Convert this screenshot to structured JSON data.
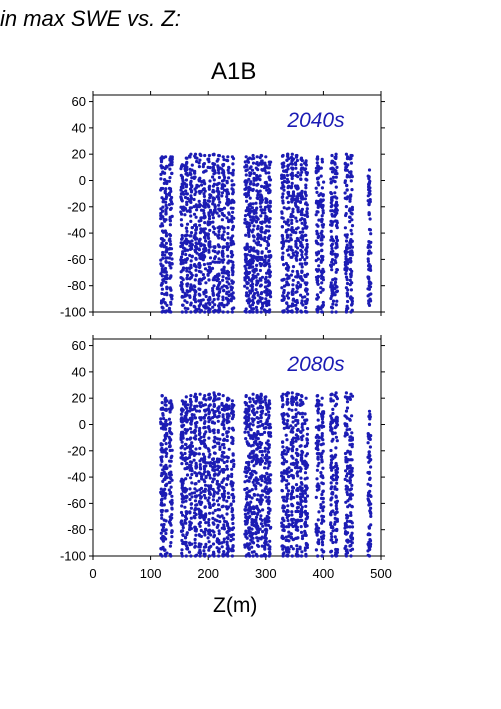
{
  "heading": "in max SWE vs. Z:",
  "scenario": "A1B",
  "colors": {
    "points": "#1c1cb4",
    "axis": "#000000"
  },
  "chart_data": [
    {
      "type": "scatter",
      "annotation": "2040s",
      "xlabel": "Z(m)",
      "xlim": [
        0,
        500
      ],
      "ylim": [
        -100,
        65
      ],
      "yticks": [
        -100,
        -80,
        -60,
        -40,
        -20,
        0,
        20,
        40,
        60
      ],
      "xticks": [
        0,
        100,
        200,
        300,
        400,
        500
      ],
      "show_xtick_labels": false,
      "grid": false,
      "max_y": 20,
      "columns": [
        {
          "x": 120,
          "ymin": -100,
          "ymax": 18
        },
        {
          "x": 126,
          "ymin": -100,
          "ymax": 18
        },
        {
          "x": 135,
          "ymin": -100,
          "ymax": 18
        },
        {
          "x": 155,
          "ymin": -100,
          "ymax": 12
        },
        {
          "x": 162,
          "ymin": -100,
          "ymax": 17
        },
        {
          "x": 170,
          "ymin": -100,
          "ymax": 20
        },
        {
          "x": 178,
          "ymin": -100,
          "ymax": 20
        },
        {
          "x": 186,
          "ymin": -100,
          "ymax": 20
        },
        {
          "x": 194,
          "ymin": -100,
          "ymax": 19
        },
        {
          "x": 202,
          "ymin": -100,
          "ymax": 19
        },
        {
          "x": 210,
          "ymin": -100,
          "ymax": 20
        },
        {
          "x": 218,
          "ymin": -100,
          "ymax": 19
        },
        {
          "x": 226,
          "ymin": -100,
          "ymax": 18
        },
        {
          "x": 234,
          "ymin": -100,
          "ymax": 18
        },
        {
          "x": 242,
          "ymin": -100,
          "ymax": 18
        },
        {
          "x": 266,
          "ymin": -100,
          "ymax": 18
        },
        {
          "x": 272,
          "ymin": -100,
          "ymax": 17
        },
        {
          "x": 278,
          "ymin": -100,
          "ymax": 19
        },
        {
          "x": 285,
          "ymin": -100,
          "ymax": 18
        },
        {
          "x": 292,
          "ymin": -100,
          "ymax": 19
        },
        {
          "x": 300,
          "ymin": -100,
          "ymax": 18
        },
        {
          "x": 306,
          "ymin": -100,
          "ymax": 14
        },
        {
          "x": 330,
          "ymin": -100,
          "ymax": 19
        },
        {
          "x": 338,
          "ymin": -100,
          "ymax": 20
        },
        {
          "x": 346,
          "ymin": -100,
          "ymax": 20
        },
        {
          "x": 354,
          "ymin": -100,
          "ymax": 19
        },
        {
          "x": 362,
          "ymin": -100,
          "ymax": 17
        },
        {
          "x": 370,
          "ymin": -100,
          "ymax": 15
        },
        {
          "x": 390,
          "ymin": -100,
          "ymax": 18
        },
        {
          "x": 398,
          "ymin": -100,
          "ymax": 16
        },
        {
          "x": 415,
          "ymin": -100,
          "ymax": 19
        },
        {
          "x": 422,
          "ymin": -100,
          "ymax": 20
        },
        {
          "x": 440,
          "ymin": -100,
          "ymax": 20
        },
        {
          "x": 448,
          "ymin": -100,
          "ymax": 19
        },
        {
          "x": 480,
          "ymin": -95,
          "ymax": 8
        }
      ]
    },
    {
      "type": "scatter",
      "annotation": "2080s",
      "xlabel": "Z(m)",
      "xlim": [
        0,
        500
      ],
      "ylim": [
        -100,
        65
      ],
      "yticks": [
        -100,
        -80,
        -60,
        -40,
        -20,
        0,
        20,
        40,
        60
      ],
      "xticks": [
        0,
        100,
        200,
        300,
        400,
        500
      ],
      "show_xtick_labels": true,
      "grid": false,
      "max_y": 24,
      "columns": [
        {
          "x": 120,
          "ymin": -100,
          "ymax": 22
        },
        {
          "x": 126,
          "ymin": -100,
          "ymax": 20
        },
        {
          "x": 135,
          "ymin": -100,
          "ymax": 18
        },
        {
          "x": 155,
          "ymin": -100,
          "ymax": 18
        },
        {
          "x": 162,
          "ymin": -100,
          "ymax": 21
        },
        {
          "x": 170,
          "ymin": -100,
          "ymax": 22
        },
        {
          "x": 178,
          "ymin": -100,
          "ymax": 23
        },
        {
          "x": 186,
          "ymin": -100,
          "ymax": 23
        },
        {
          "x": 194,
          "ymin": -100,
          "ymax": 22
        },
        {
          "x": 202,
          "ymin": -100,
          "ymax": 23
        },
        {
          "x": 210,
          "ymin": -100,
          "ymax": 24
        },
        {
          "x": 218,
          "ymin": -100,
          "ymax": 23
        },
        {
          "x": 226,
          "ymin": -100,
          "ymax": 22
        },
        {
          "x": 234,
          "ymin": -100,
          "ymax": 20
        },
        {
          "x": 242,
          "ymin": -100,
          "ymax": 18
        },
        {
          "x": 266,
          "ymin": -100,
          "ymax": 22
        },
        {
          "x": 272,
          "ymin": -100,
          "ymax": 20
        },
        {
          "x": 278,
          "ymin": -100,
          "ymax": 23
        },
        {
          "x": 285,
          "ymin": -100,
          "ymax": 22
        },
        {
          "x": 292,
          "ymin": -100,
          "ymax": 23
        },
        {
          "x": 300,
          "ymin": -100,
          "ymax": 21
        },
        {
          "x": 306,
          "ymin": -100,
          "ymax": 18
        },
        {
          "x": 330,
          "ymin": -100,
          "ymax": 23
        },
        {
          "x": 338,
          "ymin": -100,
          "ymax": 24
        },
        {
          "x": 346,
          "ymin": -100,
          "ymax": 24
        },
        {
          "x": 354,
          "ymin": -100,
          "ymax": 23
        },
        {
          "x": 362,
          "ymin": -100,
          "ymax": 22
        },
        {
          "x": 370,
          "ymin": -100,
          "ymax": 20
        },
        {
          "x": 390,
          "ymin": -100,
          "ymax": 22
        },
        {
          "x": 398,
          "ymin": -100,
          "ymax": 20
        },
        {
          "x": 415,
          "ymin": -100,
          "ymax": 23
        },
        {
          "x": 422,
          "ymin": -100,
          "ymax": 24
        },
        {
          "x": 440,
          "ymin": -100,
          "ymax": 24
        },
        {
          "x": 448,
          "ymin": -100,
          "ymax": 23
        },
        {
          "x": 480,
          "ymin": -100,
          "ymax": 10
        }
      ]
    }
  ]
}
